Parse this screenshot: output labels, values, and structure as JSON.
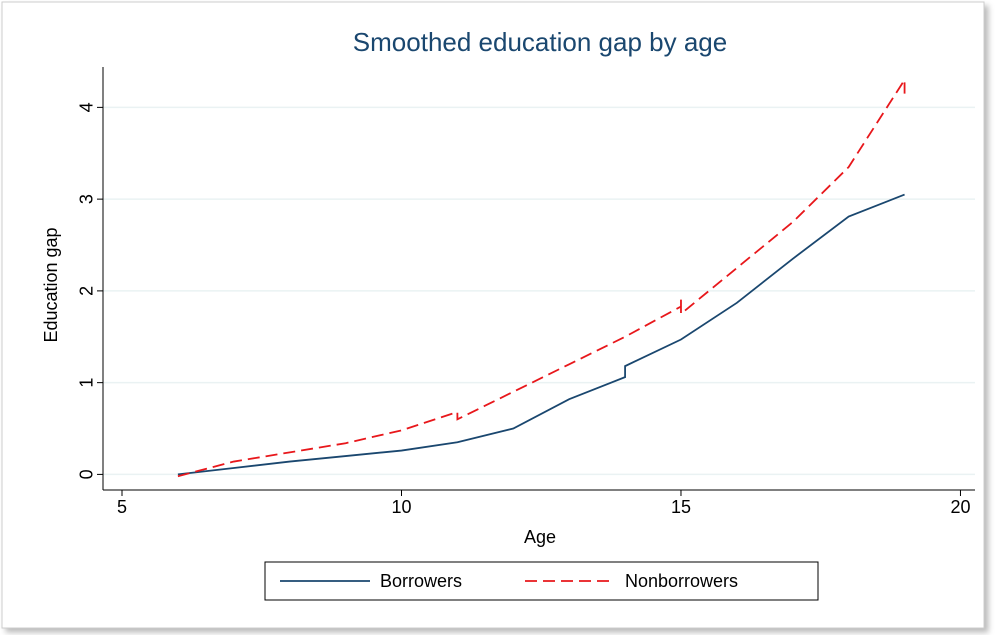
{
  "chart_data": {
    "type": "line",
    "title": "Smoothed education gap by age",
    "xlabel": "Age",
    "ylabel": "Education gap",
    "series": [
      {
        "name": "Borrowers",
        "color": "#1a476f",
        "dash": "solid",
        "x": [
          6,
          7,
          8,
          9,
          10,
          11,
          12,
          13,
          14,
          14,
          15,
          16,
          17,
          18,
          19
        ],
        "values": [
          0.0,
          0.07,
          0.14,
          0.2,
          0.26,
          0.35,
          0.5,
          0.82,
          1.06,
          1.18,
          1.47,
          1.87,
          2.35,
          2.81,
          3.05
        ]
      },
      {
        "name": "Nonborrowers",
        "color": "#e8171b",
        "dash": "dashed",
        "x": [
          6,
          7,
          8,
          9,
          10,
          11,
          11,
          12,
          13,
          14,
          15,
          15,
          15,
          16,
          17,
          18,
          19,
          19
        ],
        "values": [
          -0.02,
          0.14,
          0.24,
          0.34,
          0.48,
          0.68,
          0.6,
          0.9,
          1.2,
          1.5,
          1.83,
          1.93,
          1.75,
          2.25,
          2.75,
          3.35,
          4.3,
          4.15
        ]
      }
    ],
    "xlim": [
      4.66,
      20.26
    ],
    "ylim": [
      -0.17,
      4.44
    ],
    "xticks": [
      5,
      10,
      15,
      20
    ],
    "yticks": [
      0,
      1,
      2,
      3,
      4
    ],
    "grid": true,
    "legend": "bottom"
  }
}
